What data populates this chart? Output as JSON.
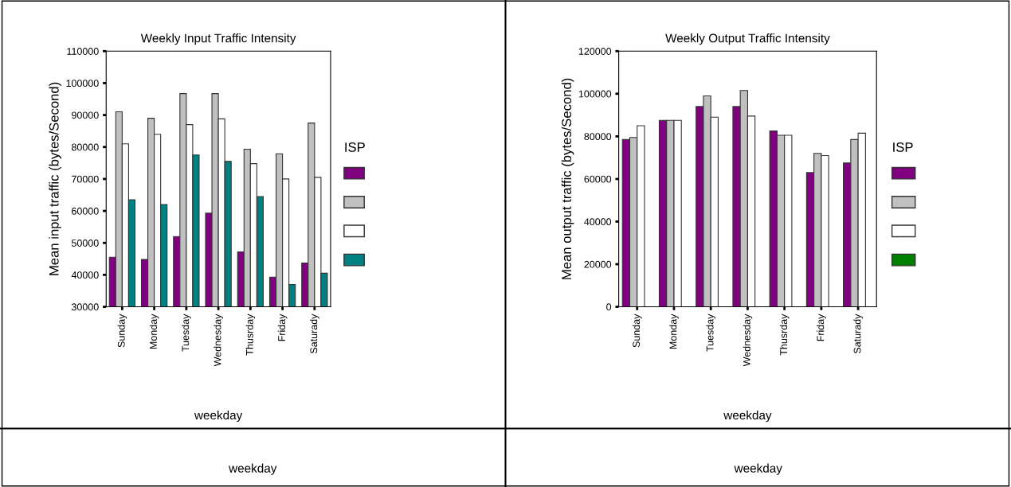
{
  "chart_data": [
    {
      "type": "bar",
      "title": "Weekly Input Traffic Intensity",
      "xlabel": "weekday",
      "ylabel": "Mean input traffic (bytes/Second)",
      "legend_title": "ISP",
      "categories": [
        "Sunday",
        "Monday",
        "Tuesday",
        "Wednesday",
        "Thusrday",
        "Friday",
        "Saturady"
      ],
      "ylim": [
        30000,
        110000
      ],
      "yticks": [
        30000,
        40000,
        50000,
        60000,
        70000,
        80000,
        90000,
        100000,
        110000
      ],
      "series": [
        {
          "color": "#800080",
          "values": [
            45500,
            44800,
            52000,
            59300,
            47200,
            39300,
            43700
          ]
        },
        {
          "color": "#c0c0c0",
          "values": [
            91000,
            89000,
            96700,
            96700,
            79300,
            77900,
            87500
          ]
        },
        {
          "color": "#ffffff",
          "values": [
            81000,
            84000,
            87000,
            88800,
            74800,
            70000,
            70500
          ]
        },
        {
          "color": "#008080",
          "values": [
            63500,
            62000,
            77500,
            75500,
            64500,
            37000,
            40500
          ]
        }
      ],
      "annotations": [
        "weekday"
      ]
    },
    {
      "type": "bar",
      "title": "Weekly Output Traffic Intensity",
      "xlabel": "weekday",
      "ylabel": "Mean output traffic (bytes/Second)",
      "legend_title": "ISP",
      "categories": [
        "Sunday",
        "Monday",
        "Tuesday",
        "Wednesday",
        "Thusrday",
        "Friday",
        "Saturady"
      ],
      "ylim": [
        0,
        120000
      ],
      "yticks": [
        0,
        20000,
        40000,
        60000,
        80000,
        100000,
        120000
      ],
      "series": [
        {
          "color": "#800080",
          "values": [
            78500,
            87500,
            94000,
            94000,
            82500,
            63000,
            67500
          ]
        },
        {
          "color": "#c0c0c0",
          "values": [
            79500,
            87500,
            99000,
            101500,
            80500,
            72000,
            78500
          ]
        },
        {
          "color": "#ffffff",
          "values": [
            85000,
            87500,
            89000,
            89500,
            80500,
            71000,
            81500
          ]
        },
        {
          "color": "#008000",
          "values": [
            0,
            0,
            0,
            0,
            0,
            0,
            0
          ]
        }
      ],
      "annotations": [
        "weekday"
      ]
    }
  ]
}
